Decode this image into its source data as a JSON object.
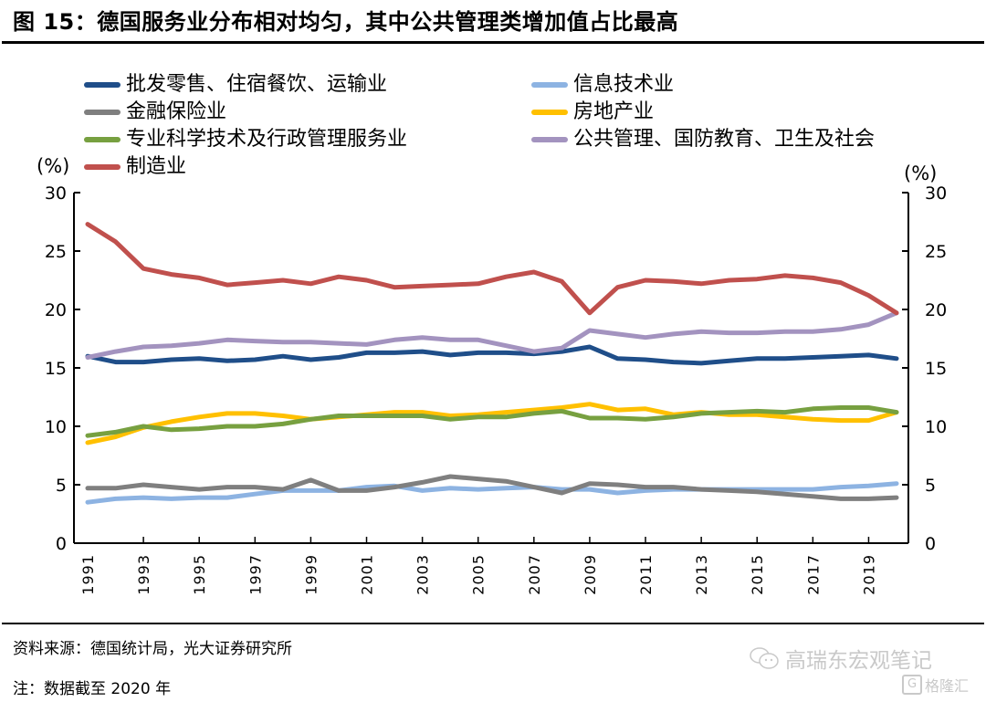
{
  "title": "图 15：德国服务业分布相对均匀，其中公共管理类增加值占比最高",
  "footer": {
    "source": "资料来源：德国统计局，光大证券研究所",
    "note": "注：数据截至 2020 年"
  },
  "watermark": {
    "account": "高瑞东宏观笔记",
    "platform": "格隆汇",
    "icon": "wechat-bubble-icon"
  },
  "chart_data": {
    "type": "line",
    "title": "图 15：德国服务业分布相对均匀，其中公共管理类增加值占比最高",
    "xlabel": "",
    "ylabel": "(%)",
    "ylabel_right": "(%)",
    "ylim": [
      0,
      30
    ],
    "yticks": [
      "0",
      "5",
      "10",
      "15",
      "20",
      "25",
      "30"
    ],
    "xticks": [
      "1991",
      "1993",
      "1995",
      "1997",
      "1999",
      "2001",
      "2003",
      "2005",
      "2007",
      "2009",
      "2011",
      "2013",
      "2015",
      "2017",
      "2019"
    ],
    "grid": false,
    "legend_position": "top",
    "x": [
      1991,
      1992,
      1993,
      1994,
      1995,
      1996,
      1997,
      1998,
      1999,
      2000,
      2001,
      2002,
      2003,
      2004,
      2005,
      2006,
      2007,
      2008,
      2009,
      2010,
      2011,
      2012,
      2013,
      2014,
      2015,
      2016,
      2017,
      2018,
      2019,
      2020
    ],
    "series": [
      {
        "name": "批发零售、住宿餐饮、运输业",
        "color": "#1f4e89",
        "values": [
          16.0,
          15.5,
          15.5,
          15.7,
          15.8,
          15.6,
          15.7,
          16.0,
          15.7,
          15.9,
          16.3,
          16.3,
          16.4,
          16.1,
          16.3,
          16.3,
          16.2,
          16.4,
          16.8,
          15.8,
          15.7,
          15.5,
          15.4,
          15.6,
          15.8,
          15.8,
          15.9,
          16.0,
          16.1,
          15.8
        ]
      },
      {
        "name": "信息技术业",
        "color": "#8db3e2",
        "values": [
          3.5,
          3.8,
          3.9,
          3.8,
          3.9,
          3.9,
          4.2,
          4.5,
          4.5,
          4.5,
          4.8,
          4.9,
          4.5,
          4.7,
          4.6,
          4.7,
          4.8,
          4.6,
          4.6,
          4.3,
          4.5,
          4.6,
          4.6,
          4.6,
          4.6,
          4.6,
          4.6,
          4.8,
          4.9,
          5.1
        ]
      },
      {
        "name": "金融保险业",
        "color": "#7f7f7f",
        "values": [
          4.7,
          4.7,
          5.0,
          4.8,
          4.6,
          4.8,
          4.8,
          4.6,
          5.4,
          4.5,
          4.5,
          4.8,
          5.2,
          5.7,
          5.5,
          5.3,
          4.8,
          4.3,
          5.1,
          5.0,
          4.8,
          4.8,
          4.6,
          4.5,
          4.4,
          4.2,
          4.0,
          3.8,
          3.8,
          3.9
        ]
      },
      {
        "name": "房地产业",
        "color": "#ffc000",
        "values": [
          8.6,
          9.1,
          9.9,
          10.4,
          10.8,
          11.1,
          11.1,
          10.9,
          10.6,
          10.8,
          11.0,
          11.2,
          11.2,
          10.9,
          11.0,
          11.2,
          11.4,
          11.6,
          11.9,
          11.4,
          11.5,
          11.0,
          11.2,
          11.0,
          11.0,
          10.8,
          10.6,
          10.5,
          10.5,
          11.2
        ]
      },
      {
        "name": "专业科学技术及行政管理服务业",
        "color": "#77a040",
        "values": [
          9.2,
          9.5,
          10.0,
          9.7,
          9.8,
          10.0,
          10.0,
          10.2,
          10.6,
          10.9,
          10.9,
          10.9,
          10.9,
          10.6,
          10.8,
          10.8,
          11.1,
          11.3,
          10.7,
          10.7,
          10.6,
          10.8,
          11.1,
          11.2,
          11.3,
          11.2,
          11.5,
          11.6,
          11.6,
          11.2
        ]
      },
      {
        "name": "公共管理、国防教育、卫生及社会",
        "color": "#a393bf",
        "values": [
          15.9,
          16.4,
          16.8,
          16.9,
          17.1,
          17.4,
          17.3,
          17.2,
          17.2,
          17.1,
          17.0,
          17.4,
          17.6,
          17.4,
          17.4,
          16.9,
          16.4,
          16.7,
          18.2,
          17.9,
          17.6,
          17.9,
          18.1,
          18.0,
          18.0,
          18.1,
          18.1,
          18.3,
          18.7,
          19.7
        ]
      },
      {
        "name": "制造业",
        "color": "#c0504d",
        "values": [
          27.3,
          25.8,
          23.5,
          23.0,
          22.7,
          22.1,
          22.3,
          22.5,
          22.2,
          22.8,
          22.5,
          21.9,
          22.0,
          22.1,
          22.2,
          22.8,
          23.2,
          22.4,
          19.7,
          21.9,
          22.5,
          22.4,
          22.2,
          22.5,
          22.6,
          22.9,
          22.7,
          22.3,
          21.2,
          19.7
        ]
      }
    ]
  }
}
